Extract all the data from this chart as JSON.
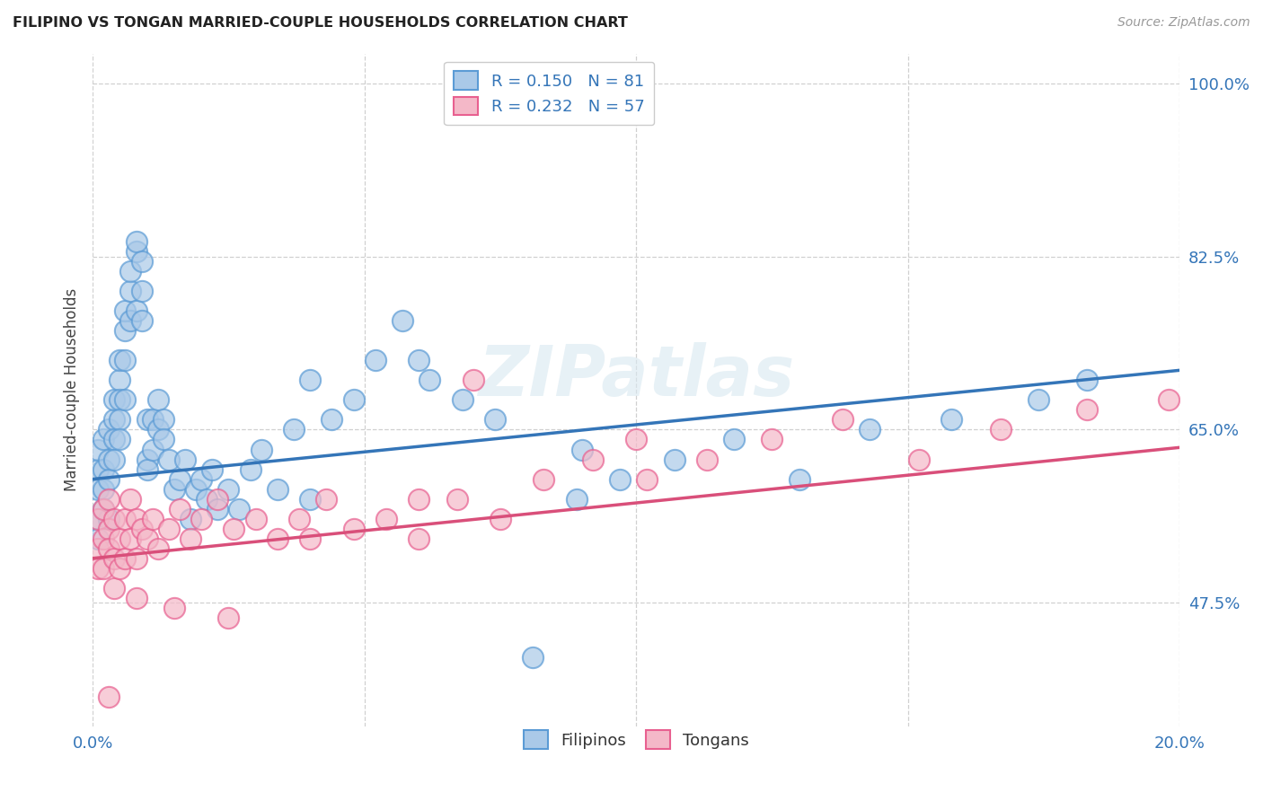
{
  "title": "FILIPINO VS TONGAN MARRIED-COUPLE HOUSEHOLDS CORRELATION CHART",
  "source": "Source: ZipAtlas.com",
  "ylabel_label": "Married-couple Households",
  "x_min": 0.0,
  "x_max": 0.2,
  "y_min": 0.35,
  "y_max": 1.03,
  "ytick_vals": [
    0.475,
    0.65,
    0.825,
    1.0
  ],
  "ytick_labels": [
    "47.5%",
    "65.0%",
    "82.5%",
    "100.0%"
  ],
  "xtick_vals": [
    0.0,
    0.05,
    0.1,
    0.15,
    0.2
  ],
  "xtick_labels": [
    "0.0%",
    "",
    "",
    "",
    "20.0%"
  ],
  "R_filipino": 0.15,
  "N_filipino": 81,
  "R_tongan": 0.232,
  "N_tongan": 57,
  "filipino_fill_color": "#aac9e8",
  "filipino_edge_color": "#5b9bd5",
  "tongan_fill_color": "#f4b8c8",
  "tongan_edge_color": "#e86090",
  "line_filipino_color": "#3475b8",
  "line_tongan_color": "#d94f7a",
  "watermark": "ZIPatlas",
  "legend_R_color": "#3475b8",
  "tick_color": "#3475b8",
  "grid_color": "#d0d0d0",
  "fil_line_x0": 0.0,
  "fil_line_y0": 0.6,
  "fil_line_x1": 0.2,
  "fil_line_y1": 0.71,
  "ton_line_x0": 0.0,
  "ton_line_y0": 0.52,
  "ton_line_x1": 0.2,
  "ton_line_y1": 0.632,
  "filipino_x": [
    0.001,
    0.001,
    0.001,
    0.001,
    0.001,
    0.002,
    0.002,
    0.002,
    0.002,
    0.003,
    0.003,
    0.003,
    0.003,
    0.004,
    0.004,
    0.004,
    0.004,
    0.005,
    0.005,
    0.005,
    0.005,
    0.005,
    0.006,
    0.006,
    0.006,
    0.006,
    0.007,
    0.007,
    0.007,
    0.008,
    0.008,
    0.008,
    0.009,
    0.009,
    0.009,
    0.01,
    0.01,
    0.01,
    0.011,
    0.011,
    0.012,
    0.012,
    0.013,
    0.013,
    0.014,
    0.015,
    0.016,
    0.017,
    0.018,
    0.019,
    0.02,
    0.021,
    0.022,
    0.023,
    0.025,
    0.027,
    0.029,
    0.031,
    0.034,
    0.037,
    0.04,
    0.044,
    0.048,
    0.052,
    0.057,
    0.062,
    0.068,
    0.074,
    0.081,
    0.089,
    0.097,
    0.107,
    0.118,
    0.13,
    0.143,
    0.158,
    0.174,
    0.183,
    0.09,
    0.06,
    0.04
  ],
  "filipino_y": [
    0.56,
    0.61,
    0.54,
    0.63,
    0.59,
    0.61,
    0.64,
    0.59,
    0.57,
    0.62,
    0.65,
    0.6,
    0.56,
    0.66,
    0.64,
    0.62,
    0.68,
    0.7,
    0.72,
    0.68,
    0.66,
    0.64,
    0.75,
    0.77,
    0.72,
    0.68,
    0.79,
    0.81,
    0.76,
    0.77,
    0.83,
    0.84,
    0.79,
    0.82,
    0.76,
    0.62,
    0.66,
    0.61,
    0.63,
    0.66,
    0.65,
    0.68,
    0.66,
    0.64,
    0.62,
    0.59,
    0.6,
    0.62,
    0.56,
    0.59,
    0.6,
    0.58,
    0.61,
    0.57,
    0.59,
    0.57,
    0.61,
    0.63,
    0.59,
    0.65,
    0.7,
    0.66,
    0.68,
    0.72,
    0.76,
    0.7,
    0.68,
    0.66,
    0.42,
    0.58,
    0.6,
    0.62,
    0.64,
    0.6,
    0.65,
    0.66,
    0.68,
    0.7,
    0.63,
    0.72,
    0.58
  ],
  "tongan_x": [
    0.001,
    0.001,
    0.001,
    0.002,
    0.002,
    0.002,
    0.003,
    0.003,
    0.003,
    0.004,
    0.004,
    0.004,
    0.005,
    0.005,
    0.006,
    0.006,
    0.007,
    0.007,
    0.008,
    0.008,
    0.009,
    0.01,
    0.011,
    0.012,
    0.014,
    0.016,
    0.018,
    0.02,
    0.023,
    0.026,
    0.03,
    0.034,
    0.038,
    0.043,
    0.048,
    0.054,
    0.06,
    0.067,
    0.075,
    0.083,
    0.092,
    0.102,
    0.113,
    0.125,
    0.138,
    0.152,
    0.167,
    0.183,
    0.198,
    0.06,
    0.025,
    0.008,
    0.07,
    0.1,
    0.04,
    0.015,
    0.003
  ],
  "tongan_y": [
    0.53,
    0.56,
    0.51,
    0.54,
    0.57,
    0.51,
    0.55,
    0.53,
    0.58,
    0.56,
    0.52,
    0.49,
    0.54,
    0.51,
    0.56,
    0.52,
    0.58,
    0.54,
    0.56,
    0.52,
    0.55,
    0.54,
    0.56,
    0.53,
    0.55,
    0.57,
    0.54,
    0.56,
    0.58,
    0.55,
    0.56,
    0.54,
    0.56,
    0.58,
    0.55,
    0.56,
    0.54,
    0.58,
    0.56,
    0.6,
    0.62,
    0.6,
    0.62,
    0.64,
    0.66,
    0.62,
    0.65,
    0.67,
    0.68,
    0.58,
    0.46,
    0.48,
    0.7,
    0.64,
    0.54,
    0.47,
    0.38
  ]
}
